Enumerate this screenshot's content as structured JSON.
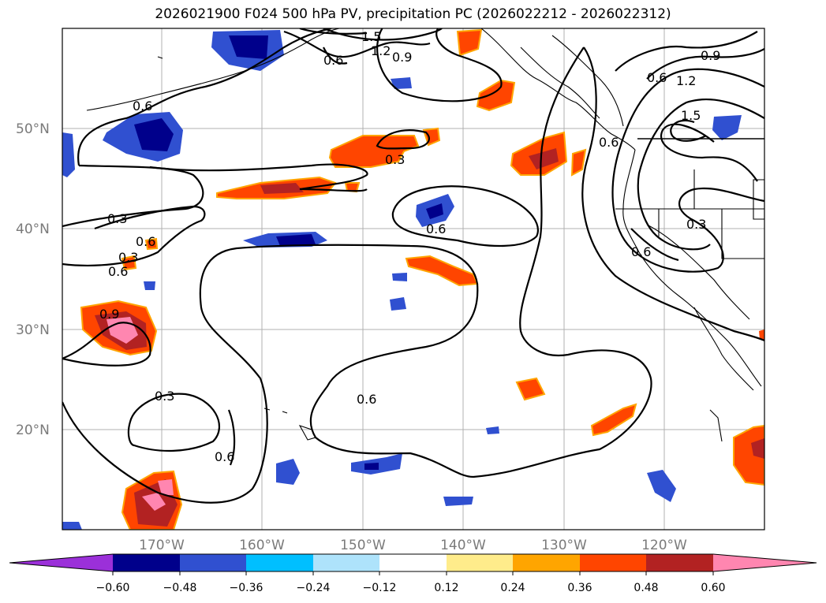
{
  "title": "2026021900 F024 500 hPa PV, precipitation PC (2026022212 - 2026022312)",
  "map": {
    "lat_labels": [
      "50°N",
      "40°N",
      "30°N",
      "20°N"
    ],
    "lon_labels": [
      "170°W",
      "160°W",
      "150°W",
      "140°W",
      "130°W",
      "120°W"
    ],
    "contour_labels": [
      "1.5",
      "1.2",
      "0.9",
      "0.6",
      "0.6",
      "0.3",
      "0.6",
      "0.6",
      "0.3",
      "0.6",
      "0.6",
      "0.9",
      "0.3",
      "0.6",
      "0.6",
      "0.9",
      "1.2",
      "1.5",
      "0.6",
      "0.3",
      "0.6",
      "0.3"
    ]
  },
  "colorbar": {
    "ticks": [
      "−0.60",
      "−0.48",
      "−0.36",
      "−0.24",
      "−0.12",
      "0.12",
      "0.24",
      "0.36",
      "0.48",
      "0.60"
    ],
    "colors": [
      "#9b30d9",
      "#00008b",
      "#3050d0",
      "#00bfff",
      "#aee3fb",
      "#ffffff",
      "#ffec8b",
      "#ffa500",
      "#ff4500",
      "#b22222",
      "#ff86b0"
    ]
  }
}
